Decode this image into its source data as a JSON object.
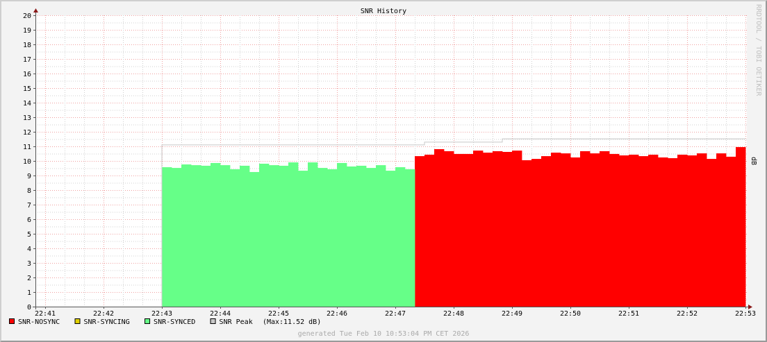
{
  "chart_data": {
    "type": "area",
    "title": "SNR History",
    "ylabel": "dB",
    "watermark": "RRDTOOL / TOBI OETIKER",
    "ylim": [
      0,
      20
    ],
    "yticks": [
      0,
      1,
      2,
      3,
      4,
      5,
      6,
      7,
      8,
      9,
      10,
      11,
      12,
      13,
      14,
      15,
      16,
      17,
      18,
      19,
      20
    ],
    "xticks": [
      "22:41",
      "22:42",
      "22:43",
      "22:44",
      "22:45",
      "22:46",
      "22:47",
      "22:48",
      "22:49",
      "22:50",
      "22:51",
      "22:52",
      "22:53"
    ],
    "grid": true,
    "legend_placement": "bottom-left",
    "step_seconds": 10,
    "series": [
      {
        "name": "SNR-NOSYNC",
        "color": "#ff0000",
        "start": "22:47:20",
        "values": [
          10.33,
          10.43,
          10.81,
          10.67,
          10.48,
          10.48,
          10.71,
          10.57,
          10.67,
          10.62,
          10.71,
          10.05,
          10.14,
          10.33,
          10.57,
          10.52,
          10.24,
          10.67,
          10.52,
          10.67,
          10.48,
          10.38,
          10.43,
          10.33,
          10.43,
          10.24,
          10.19,
          10.43,
          10.38,
          10.52,
          10.14,
          10.52,
          10.29,
          10.95
        ]
      },
      {
        "name": "SNR-SYNCING",
        "color": "#e0d000",
        "values": []
      },
      {
        "name": "SNR-SYNCED",
        "color": "#66ff88",
        "start": "22:43:00",
        "values": [
          9.57,
          9.52,
          9.76,
          9.71,
          9.67,
          9.86,
          9.71,
          9.43,
          9.67,
          9.24,
          9.81,
          9.71,
          9.67,
          9.9,
          9.33,
          9.9,
          9.52,
          9.43,
          9.86,
          9.62,
          9.67,
          9.52,
          9.71,
          9.33,
          9.57,
          9.43
        ]
      },
      {
        "name": "SNR Peak",
        "color": "#c8c8c8",
        "type": "step-line",
        "points": [
          {
            "t": "22:43:00",
            "v": 11.1
          },
          {
            "t": "22:47:30",
            "v": 11.29
          },
          {
            "t": "22:48:50",
            "v": 11.52
          },
          {
            "t": "22:53:00",
            "v": 11.52
          }
        ]
      }
    ],
    "legend_note": "(Max:11.52 dB)",
    "footer": "generated Tue Feb 10 10:53:04 PM CET 2026"
  }
}
